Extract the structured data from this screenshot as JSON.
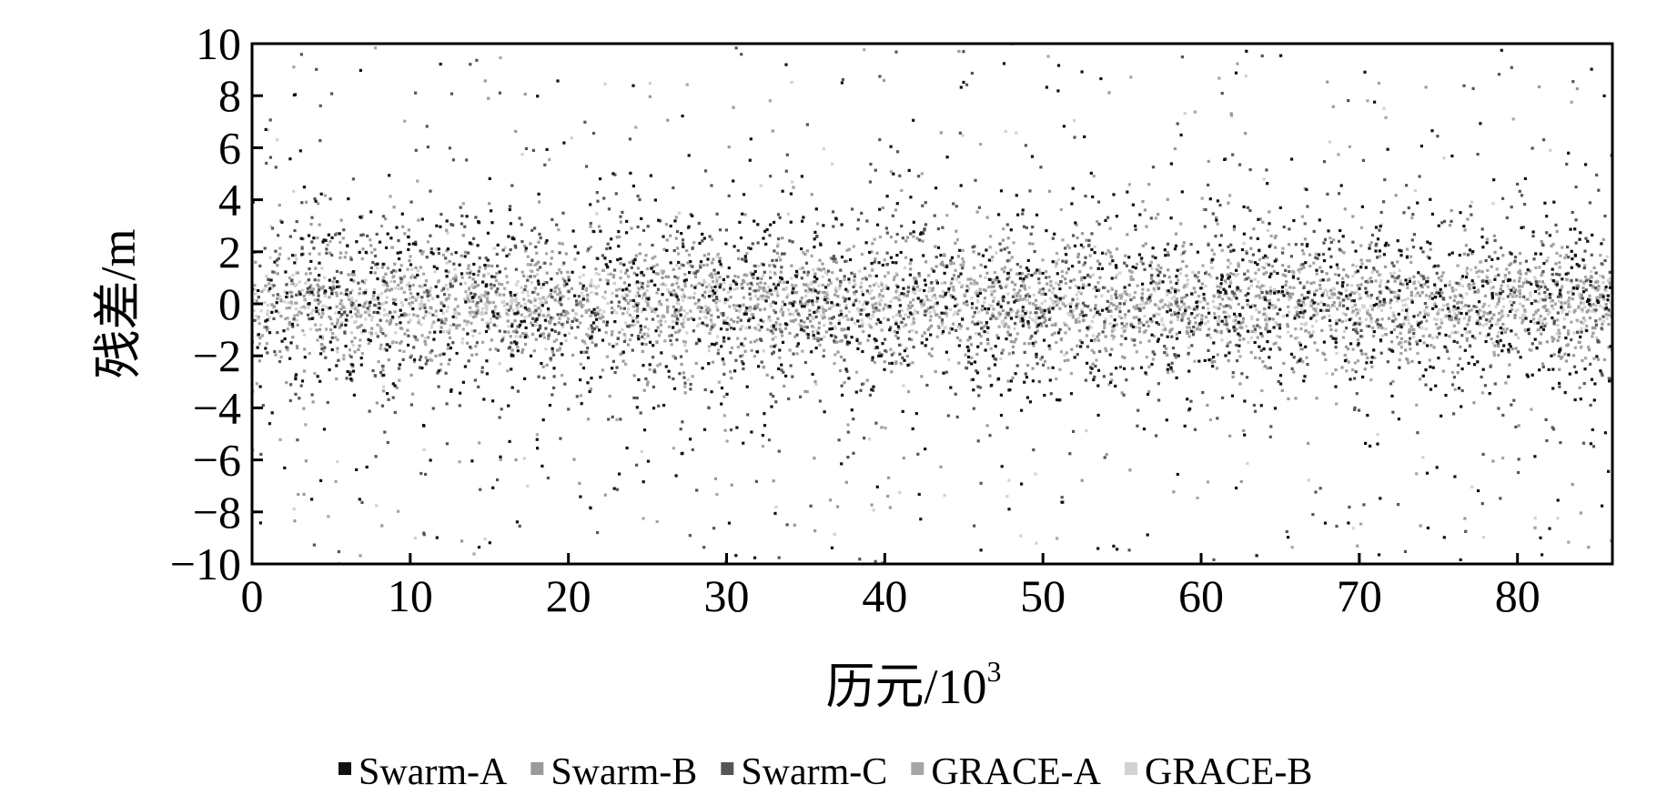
{
  "chart_data": {
    "type": "scatter",
    "title": "",
    "xlabel": "历元/10",
    "xlabel_superscript": "3",
    "ylabel": "残差/m",
    "xlim": [
      0,
      86
    ],
    "ylim": [
      -10,
      10
    ],
    "xticks": [
      0,
      10,
      20,
      30,
      40,
      50,
      60,
      70,
      80
    ],
    "yticks": [
      10,
      8,
      6,
      4,
      2,
      0,
      -2,
      -4,
      -6,
      -8,
      -10
    ],
    "ytick_labels": [
      "10",
      "8",
      "6",
      "4",
      "2",
      "0",
      "−2",
      "−4",
      "−6",
      "−8",
      "−10"
    ],
    "grid": false,
    "legend_position": "bottom",
    "series": [
      {
        "name": "Swarm-A",
        "color": "#111111",
        "spread": 1.9,
        "spike_prob": 0.14
      },
      {
        "name": "Swarm-B",
        "color": "#9a9a9a",
        "spread": 1.4,
        "spike_prob": 0.08
      },
      {
        "name": "Swarm-C",
        "color": "#555555",
        "spread": 2.2,
        "spike_prob": 0.12
      },
      {
        "name": "GRACE-A",
        "color": "#a6a6a6",
        "spread": 1.2,
        "spike_prob": 0.06
      },
      {
        "name": "GRACE-B",
        "color": "#d2d2d2",
        "spread": 0.7,
        "spike_prob": 0.05
      }
    ]
  }
}
